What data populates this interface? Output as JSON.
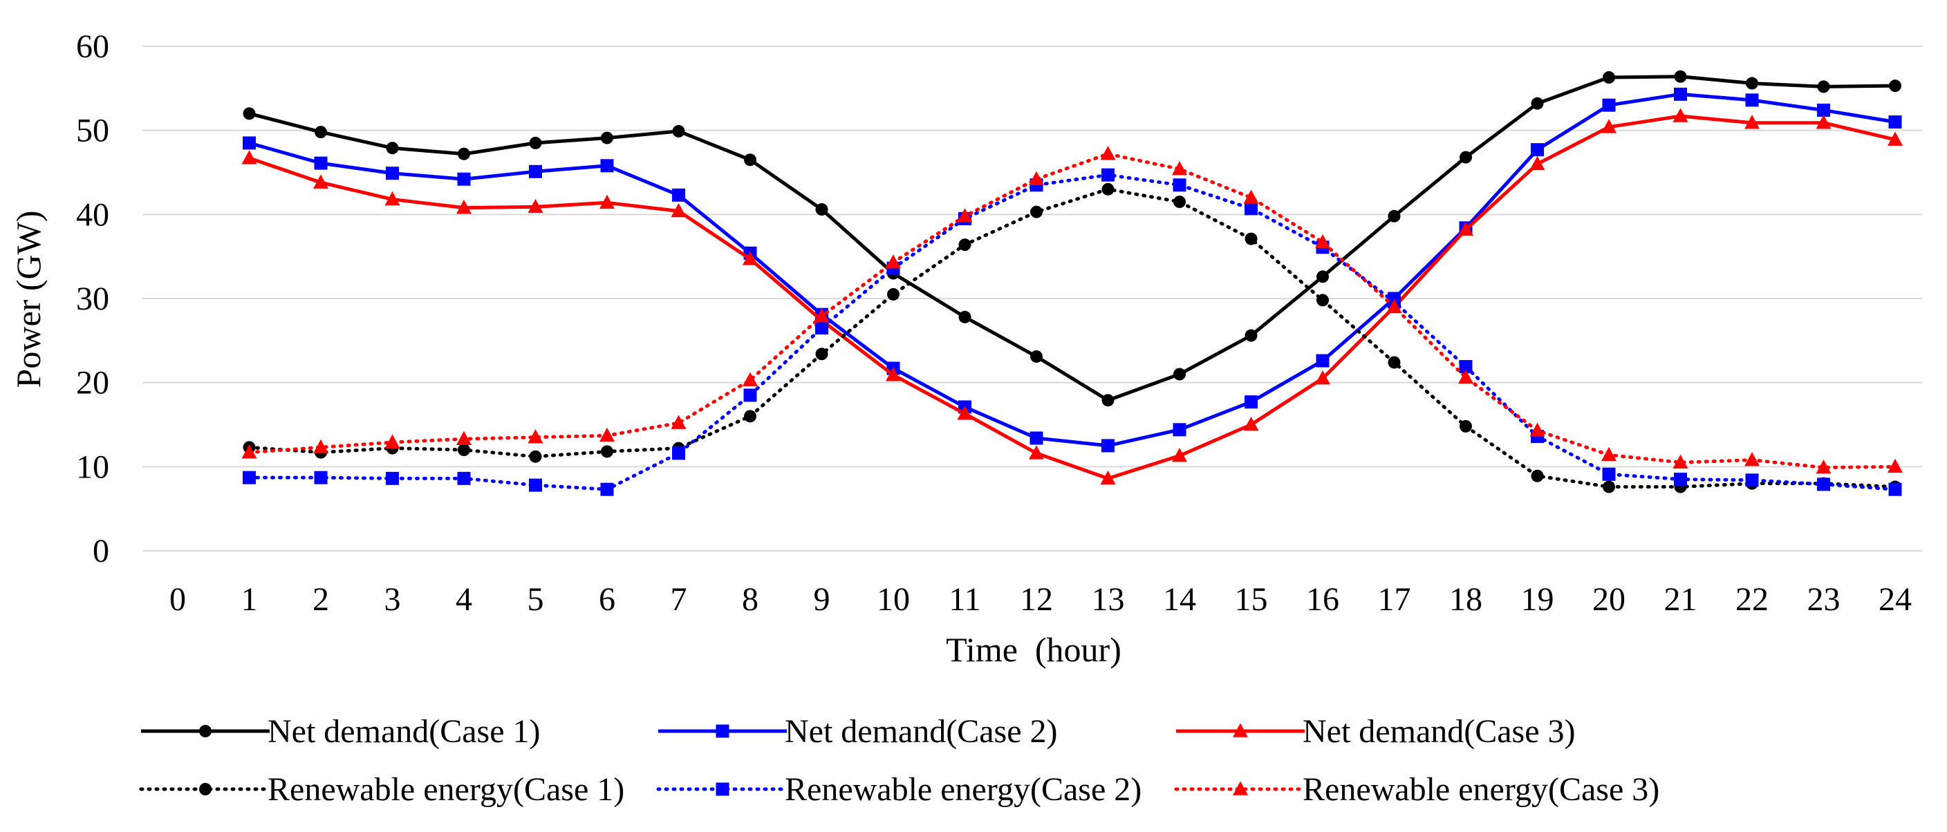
{
  "chart_data": {
    "type": "line",
    "title": "",
    "xlabel": "Time  (hour)",
    "ylabel": "Power (GW)",
    "ylim": [
      0,
      60
    ],
    "yticks": [
      0,
      10,
      20,
      30,
      40,
      50,
      60
    ],
    "xlim": [
      0,
      24
    ],
    "xticks": [
      0,
      1,
      2,
      3,
      4,
      5,
      6,
      7,
      8,
      9,
      10,
      11,
      12,
      13,
      14,
      15,
      16,
      17,
      18,
      19,
      20,
      21,
      22,
      23,
      24
    ],
    "grid": "horizontal",
    "legend_position": "bottom",
    "x": [
      1,
      2,
      3,
      4,
      5,
      6,
      7,
      8,
      9,
      10,
      11,
      12,
      13,
      14,
      15,
      16,
      17,
      18,
      19,
      20,
      21,
      22,
      23,
      24
    ],
    "series": [
      {
        "name": "Net demand(Case 1)",
        "color": "#000000",
        "line_style": "solid",
        "marker": "circle",
        "values": [
          52.0,
          49.8,
          47.9,
          47.2,
          48.5,
          49.1,
          49.9,
          46.5,
          40.6,
          33.0,
          27.8,
          23.1,
          17.9,
          21.0,
          25.6,
          32.6,
          39.8,
          46.8,
          53.2,
          56.3,
          56.4,
          55.6,
          55.2,
          55.3
        ]
      },
      {
        "name": "Net demand(Case 2)",
        "color": "#0000ff",
        "line_style": "solid",
        "marker": "square",
        "values": [
          48.5,
          46.1,
          44.9,
          44.2,
          45.1,
          45.8,
          42.3,
          35.4,
          28.1,
          21.7,
          17.1,
          13.4,
          12.5,
          14.4,
          17.7,
          22.6,
          30.0,
          38.4,
          47.7,
          53.0,
          54.3,
          53.6,
          52.4,
          51.0
        ]
      },
      {
        "name": "Net demand(Case 3)",
        "color": "#ff0000",
        "line_style": "solid",
        "marker": "triangle",
        "values": [
          46.7,
          43.8,
          41.8,
          40.8,
          40.9,
          41.4,
          40.4,
          34.7,
          27.4,
          20.9,
          16.3,
          11.6,
          8.6,
          11.3,
          15.0,
          20.5,
          29.0,
          38.2,
          46.0,
          50.4,
          51.7,
          50.9,
          50.9,
          48.9
        ]
      },
      {
        "name": "Renewable energy(Case 1)",
        "color": "#000000",
        "line_style": "dotted",
        "marker": "circle",
        "values": [
          12.3,
          11.7,
          12.2,
          12.0,
          11.2,
          11.8,
          12.2,
          16.0,
          23.4,
          30.5,
          36.4,
          40.3,
          43.0,
          41.5,
          37.1,
          29.8,
          22.4,
          14.8,
          8.9,
          7.6,
          7.6,
          8.0,
          8.0,
          7.6
        ]
      },
      {
        "name": "Renewable energy(Case 2)",
        "color": "#0000ff",
        "line_style": "dotted",
        "marker": "square",
        "values": [
          8.7,
          8.7,
          8.6,
          8.6,
          7.8,
          7.3,
          11.6,
          18.5,
          26.5,
          33.6,
          39.5,
          43.5,
          44.7,
          43.5,
          40.7,
          36.1,
          29.6,
          21.9,
          13.6,
          9.1,
          8.5,
          8.4,
          7.9,
          7.3
        ]
      },
      {
        "name": "Renewable energy(Case 3)",
        "color": "#ff0000",
        "line_style": "dotted",
        "marker": "triangle",
        "values": [
          11.7,
          12.3,
          12.9,
          13.3,
          13.5,
          13.7,
          15.2,
          20.3,
          27.9,
          34.3,
          39.8,
          44.2,
          47.2,
          45.4,
          42.0,
          36.7,
          29.0,
          20.6,
          14.3,
          11.4,
          10.5,
          10.8,
          9.9,
          10.0
        ]
      }
    ]
  }
}
